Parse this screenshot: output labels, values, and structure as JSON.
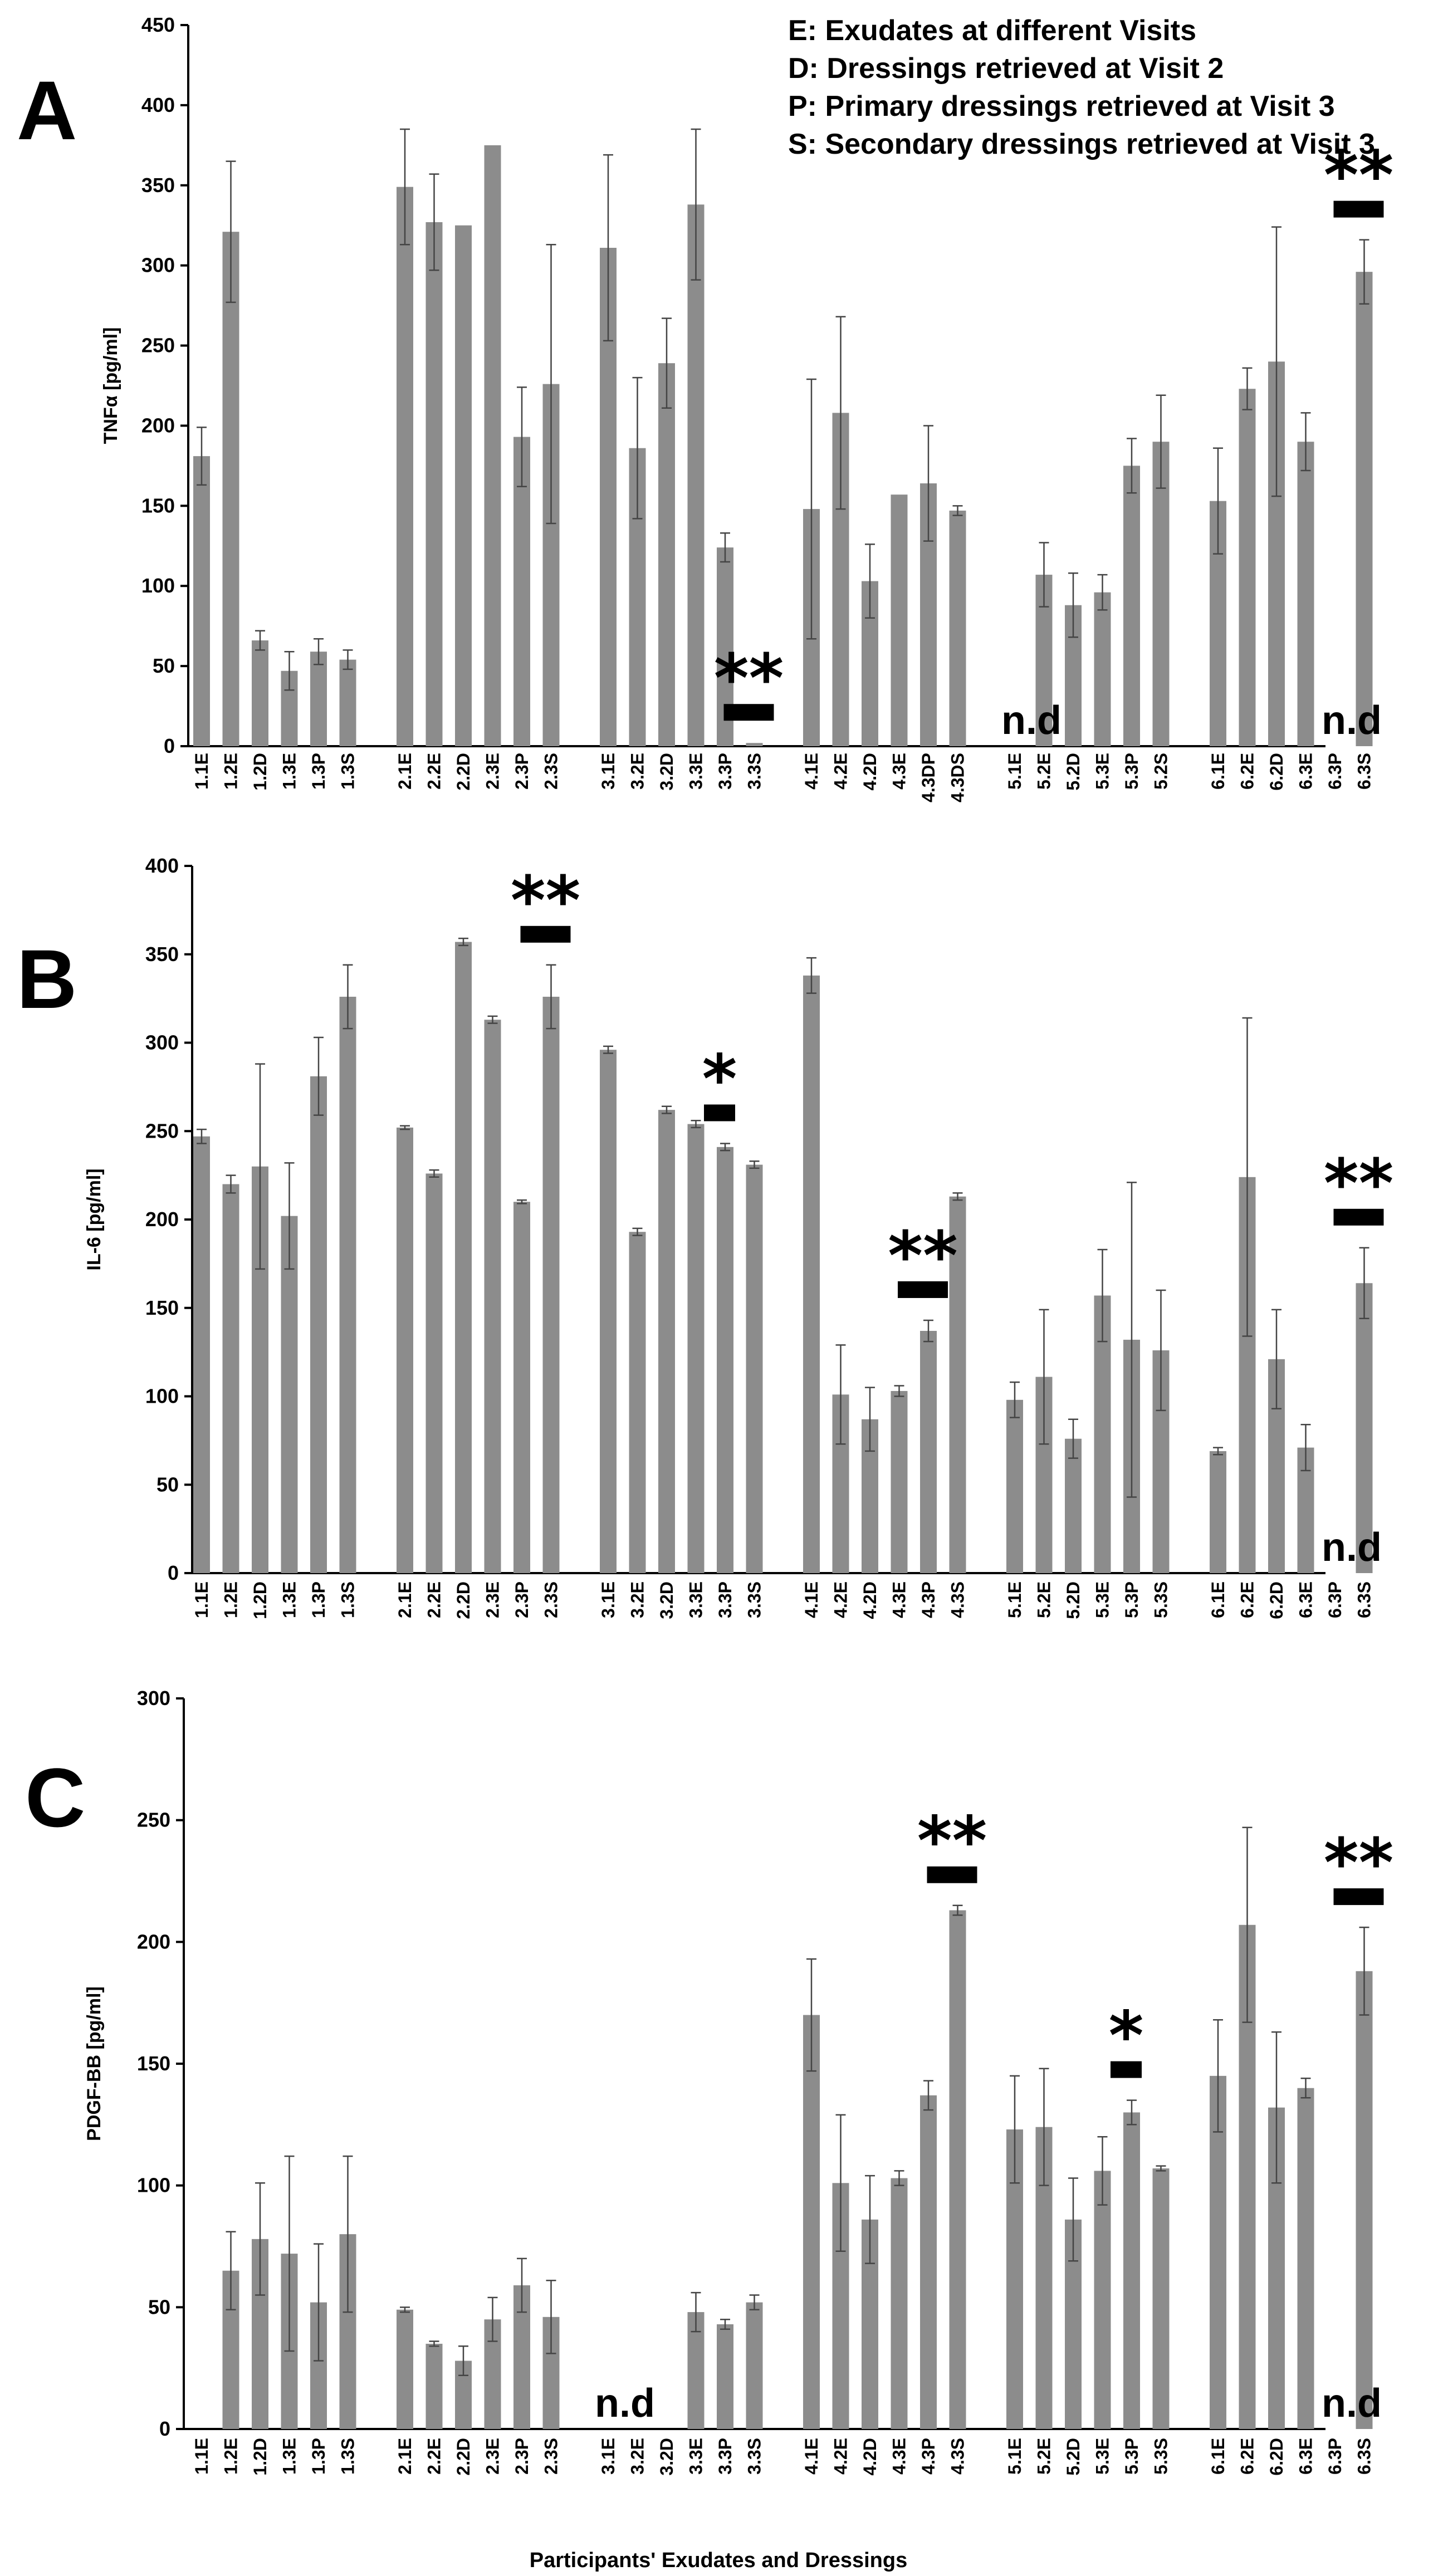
{
  "legend": [
    "E: Exudates at different Visits",
    "D: Dressings retrieved at Visit 2",
    "P: Primary dressings retrieved at Visit 3",
    "S: Secondary dressings retrieved at Visit 3"
  ],
  "x_axis_title": "Participants' Exudates and Dressings",
  "colors": {
    "bar": "#8c8c8c",
    "axis": "#000000",
    "marker": "#000000"
  },
  "chart_data": [
    {
      "panel": "A",
      "type": "bar",
      "ylabel": "TNFα [pg/ml]",
      "ylim": [
        0,
        450
      ],
      "ytick_step": 50,
      "groups": [
        {
          "labels": [
            "1.1E",
            "1.2E",
            "1.2D",
            "1.3E",
            "1.3P",
            "1.3S"
          ],
          "values": [
            181,
            321,
            66,
            47,
            59,
            54
          ],
          "errors": [
            18,
            44,
            6,
            12,
            8,
            6
          ]
        },
        {
          "labels": [
            "2.1E",
            "2.2E",
            "2.2D",
            "2.3E",
            "2.3P",
            "2.3S"
          ],
          "values": [
            349,
            327,
            325,
            375,
            193,
            226
          ],
          "errors": [
            36,
            30,
            0,
            0,
            31,
            87
          ]
        },
        {
          "labels": [
            "3.1E",
            "3.2E",
            "3.2D",
            "3.3E",
            "3.3P",
            "3.3S"
          ],
          "values": [
            311,
            186,
            239,
            338,
            124,
            2
          ],
          "errors": [
            58,
            44,
            28,
            47,
            9,
            0
          ]
        },
        {
          "labels": [
            "4.1E",
            "4.2E",
            "4.2D",
            "4.3E",
            "4.3DP",
            "4.3DS"
          ],
          "values": [
            148,
            208,
            103,
            157,
            164,
            147
          ],
          "errors": [
            81,
            60,
            23,
            0,
            36,
            3
          ]
        },
        {
          "labels": [
            "5.1E",
            "5.2E",
            "5.2D",
            "5.3E",
            "5.3P",
            "5.2S"
          ],
          "values": [
            0,
            107,
            88,
            96,
            175,
            190
          ],
          "errors": [
            0,
            20,
            20,
            11,
            17,
            29
          ]
        },
        {
          "labels": [
            "6.1E",
            "6.2E",
            "6.2D",
            "6.3E",
            "6.3P",
            "6.3S"
          ],
          "values": [
            153,
            223,
            240,
            190,
            0,
            296
          ],
          "errors": [
            33,
            13,
            84,
            18,
            0,
            20
          ]
        }
      ],
      "nd_labels": [
        {
          "text": "n.d",
          "group": 4,
          "bar": 0
        },
        {
          "text": "n.d",
          "group": 5,
          "bar": 4
        }
      ],
      "significance": [
        {
          "text": "**",
          "group": 2,
          "bar": 5
        },
        {
          "text": "**",
          "group": 5,
          "bar": 5
        }
      ]
    },
    {
      "panel": "B",
      "type": "bar",
      "ylabel": "IL-6 [pg/ml]",
      "ylim": [
        0,
        400
      ],
      "ytick_step": 50,
      "groups": [
        {
          "labels": [
            "1.1E",
            "1.2E",
            "1.2D",
            "1.3E",
            "1.3P",
            "1.3S"
          ],
          "values": [
            247,
            220,
            230,
            202,
            281,
            326
          ],
          "errors": [
            4,
            5,
            58,
            30,
            22,
            18
          ]
        },
        {
          "labels": [
            "2.1E",
            "2.2E",
            "2.2D",
            "2.3E",
            "2.3P",
            "2.3S"
          ],
          "values": [
            252,
            226,
            357,
            313,
            210,
            326
          ],
          "errors": [
            1,
            2,
            2,
            2,
            1,
            18
          ]
        },
        {
          "labels": [
            "3.1E",
            "3.2E",
            "3.2D",
            "3.3E",
            "3.3P",
            "3.3S"
          ],
          "values": [
            296,
            193,
            262,
            254,
            241,
            231
          ],
          "errors": [
            2,
            2,
            2,
            2,
            2,
            2
          ]
        },
        {
          "labels": [
            "4.1E",
            "4.2E",
            "4.2D",
            "4.3E",
            "4.3P",
            "4.3S"
          ],
          "values": [
            338,
            101,
            87,
            103,
            137,
            213
          ],
          "errors": [
            10,
            28,
            18,
            3,
            6,
            2
          ]
        },
        {
          "labels": [
            "5.1E",
            "5.2E",
            "5.2D",
            "5.3E",
            "5.3P",
            "5.3S"
          ],
          "values": [
            98,
            111,
            76,
            157,
            132,
            126
          ],
          "errors": [
            10,
            38,
            11,
            26,
            89,
            34
          ]
        },
        {
          "labels": [
            "6.1E",
            "6.2E",
            "6.2D",
            "6.3E",
            "6.3P",
            "6.3S"
          ],
          "values": [
            69,
            224,
            121,
            71,
            0,
            164
          ],
          "errors": [
            2,
            90,
            28,
            13,
            0,
            20
          ]
        }
      ],
      "nd_labels": [
        {
          "text": "n.d",
          "group": 5,
          "bar": 4
        }
      ],
      "significance": [
        {
          "text": "**",
          "group": 1,
          "bar": 5
        },
        {
          "text": "*",
          "group": 2,
          "bar": 4
        },
        {
          "text": "**",
          "group": 3,
          "bar": 4
        },
        {
          "text": "**",
          "group": 5,
          "bar": 5
        }
      ]
    },
    {
      "panel": "C",
      "type": "bar",
      "ylabel": "PDGF-BB [pg/ml]",
      "ylim": [
        0,
        300
      ],
      "ytick_step": 50,
      "groups": [
        {
          "labels": [
            "1.1E",
            "1.2E",
            "1.2D",
            "1.3E",
            "1.3P",
            "1.3S"
          ],
          "values": [
            0,
            65,
            78,
            72,
            52,
            80
          ],
          "errors": [
            0,
            16,
            23,
            40,
            24,
            32
          ]
        },
        {
          "labels": [
            "2.1E",
            "2.2E",
            "2.2D",
            "2.3E",
            "2.3P",
            "2.3S"
          ],
          "values": [
            49,
            35,
            28,
            45,
            59,
            46
          ],
          "errors": [
            1,
            1,
            6,
            9,
            11,
            15
          ]
        },
        {
          "labels": [
            "3.1E",
            "3.2E",
            "3.2D",
            "3.3E",
            "3.3P",
            "3.3S"
          ],
          "values": [
            0,
            0,
            0,
            48,
            43,
            52
          ],
          "errors": [
            0,
            0,
            0,
            8,
            2,
            3
          ]
        },
        {
          "labels": [
            "4.1E",
            "4.2E",
            "4.2D",
            "4.3E",
            "4.3P",
            "4.3S"
          ],
          "values": [
            170,
            101,
            86,
            103,
            137,
            213
          ],
          "errors": [
            23,
            28,
            18,
            3,
            6,
            2
          ]
        },
        {
          "labels": [
            "5.1E",
            "5.2E",
            "5.2D",
            "5.3E",
            "5.3P",
            "5.3S"
          ],
          "values": [
            123,
            124,
            86,
            106,
            130,
            107
          ],
          "errors": [
            22,
            24,
            17,
            14,
            5,
            1
          ]
        },
        {
          "labels": [
            "6.1E",
            "6.2E",
            "6.2D",
            "6.3E",
            "6.3P",
            "6.3S"
          ],
          "values": [
            145,
            207,
            132,
            140,
            0,
            188
          ],
          "errors": [
            23,
            40,
            31,
            4,
            0,
            18
          ]
        }
      ],
      "nd_labels": [
        {
          "text": "n.d",
          "group": 2,
          "bar": 0
        },
        {
          "text": "n.d",
          "group": 5,
          "bar": 4
        }
      ],
      "significance": [
        {
          "text": "**",
          "group": 3,
          "bar": 5
        },
        {
          "text": "*",
          "group": 4,
          "bar": 4
        },
        {
          "text": "**",
          "group": 5,
          "bar": 5
        }
      ]
    }
  ]
}
